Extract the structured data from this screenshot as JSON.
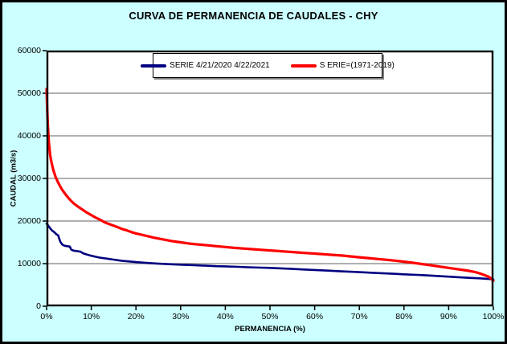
{
  "window": {
    "background_color": "#CCFFFF",
    "plot_background_color": "#FFFFFF",
    "border_color": "#000000",
    "gridline_color": "#808080"
  },
  "chart_data": {
    "type": "line",
    "title": "CURVA DE PERMANENCIA DE CAUDALES - CHY",
    "xlabel": "PERMANENCIA (%)",
    "ylabel": "CAUDAL (m3/s)",
    "xlim": [
      0,
      100
    ],
    "ylim": [
      0,
      60000
    ],
    "grid": true,
    "legend_position": "top-center",
    "x_ticks": [
      0,
      10,
      20,
      30,
      40,
      50,
      60,
      70,
      80,
      90,
      100
    ],
    "x_tick_labels": [
      "0%",
      "10%",
      "20%",
      "30%",
      "40%",
      "50%",
      "60%",
      "70%",
      "80%",
      "90%",
      "100%"
    ],
    "y_ticks": [
      0,
      10000,
      20000,
      30000,
      40000,
      50000,
      60000
    ],
    "y_tick_labels": [
      "0",
      "10000",
      "20000",
      "30000",
      "40000",
      "50000",
      "60000"
    ],
    "series": [
      {
        "name": "SERIE 4/21/2020 4/22/2021",
        "color": "#000080",
        "line_width": 2.6,
        "points": [
          [
            0,
            19400
          ],
          [
            0.3,
            19000
          ],
          [
            0.8,
            18300
          ],
          [
            1.2,
            17800
          ],
          [
            1.7,
            17400
          ],
          [
            2.2,
            16900
          ],
          [
            2.6,
            16600
          ],
          [
            2.8,
            15900
          ],
          [
            3.1,
            15100
          ],
          [
            3.5,
            14500
          ],
          [
            4,
            14200
          ],
          [
            4.6,
            14100
          ],
          [
            5.2,
            14000
          ],
          [
            5.5,
            13300
          ],
          [
            6,
            13050
          ],
          [
            6.8,
            12950
          ],
          [
            7.6,
            12800
          ],
          [
            8.2,
            12400
          ],
          [
            9,
            12150
          ],
          [
            10,
            11850
          ],
          [
            11,
            11600
          ],
          [
            12,
            11400
          ],
          [
            13,
            11250
          ],
          [
            14,
            11100
          ],
          [
            15,
            10950
          ],
          [
            16,
            10800
          ],
          [
            17,
            10650
          ],
          [
            18,
            10550
          ],
          [
            19,
            10450
          ],
          [
            20,
            10350
          ],
          [
            22,
            10200
          ],
          [
            24,
            10050
          ],
          [
            26,
            9950
          ],
          [
            28,
            9850
          ],
          [
            30,
            9750
          ],
          [
            33,
            9650
          ],
          [
            35,
            9550
          ],
          [
            38,
            9400
          ],
          [
            40,
            9350
          ],
          [
            43,
            9250
          ],
          [
            45,
            9150
          ],
          [
            48,
            9050
          ],
          [
            50,
            9000
          ],
          [
            53,
            8850
          ],
          [
            55,
            8750
          ],
          [
            58,
            8600
          ],
          [
            60,
            8500
          ],
          [
            63,
            8350
          ],
          [
            65,
            8250
          ],
          [
            68,
            8100
          ],
          [
            70,
            8000
          ],
          [
            73,
            7850
          ],
          [
            75,
            7750
          ],
          [
            78,
            7600
          ],
          [
            80,
            7500
          ],
          [
            83,
            7350
          ],
          [
            85,
            7250
          ],
          [
            88,
            7050
          ],
          [
            90,
            6950
          ],
          [
            93,
            6750
          ],
          [
            95,
            6650
          ],
          [
            97,
            6550
          ],
          [
            99,
            6400
          ],
          [
            100,
            6300
          ]
        ]
      },
      {
        "name": "S ERIE=(1971-2019)",
        "color": "#FF0000",
        "line_width": 3.2,
        "points": [
          [
            0,
            51000
          ],
          [
            0.15,
            46000
          ],
          [
            0.3,
            42000
          ],
          [
            0.5,
            38500
          ],
          [
            0.8,
            35500
          ],
          [
            1,
            34200
          ],
          [
            1.5,
            32000
          ],
          [
            2,
            30400
          ],
          [
            2.5,
            29200
          ],
          [
            3,
            28200
          ],
          [
            3.5,
            27300
          ],
          [
            4,
            26600
          ],
          [
            4.5,
            25900
          ],
          [
            5,
            25300
          ],
          [
            5.5,
            24700
          ],
          [
            6,
            24200
          ],
          [
            6.5,
            23800
          ],
          [
            7,
            23400
          ],
          [
            8,
            22700
          ],
          [
            9,
            22000
          ],
          [
            10,
            21400
          ],
          [
            11,
            20800
          ],
          [
            12,
            20300
          ],
          [
            13,
            19700
          ],
          [
            14,
            19300
          ],
          [
            15,
            18900
          ],
          [
            16,
            18500
          ],
          [
            17,
            18100
          ],
          [
            18,
            17800
          ],
          [
            19,
            17400
          ],
          [
            20,
            17100
          ],
          [
            22,
            16600
          ],
          [
            24,
            16100
          ],
          [
            26,
            15700
          ],
          [
            28,
            15300
          ],
          [
            30,
            15000
          ],
          [
            32,
            14700
          ],
          [
            34,
            14500
          ],
          [
            36,
            14300
          ],
          [
            38,
            14100
          ],
          [
            40,
            13900
          ],
          [
            42,
            13700
          ],
          [
            44,
            13550
          ],
          [
            46,
            13400
          ],
          [
            48,
            13250
          ],
          [
            50,
            13100
          ],
          [
            52,
            12950
          ],
          [
            54,
            12800
          ],
          [
            56,
            12650
          ],
          [
            58,
            12500
          ],
          [
            60,
            12350
          ],
          [
            62,
            12200
          ],
          [
            64,
            12050
          ],
          [
            66,
            11900
          ],
          [
            68,
            11700
          ],
          [
            70,
            11500
          ],
          [
            72,
            11300
          ],
          [
            74,
            11100
          ],
          [
            76,
            10900
          ],
          [
            78,
            10700
          ],
          [
            80,
            10450
          ],
          [
            82,
            10200
          ],
          [
            84,
            9900
          ],
          [
            86,
            9600
          ],
          [
            88,
            9300
          ],
          [
            90,
            9000
          ],
          [
            92,
            8700
          ],
          [
            94,
            8400
          ],
          [
            95,
            8200
          ],
          [
            96,
            8000
          ],
          [
            97,
            7700
          ],
          [
            98,
            7300
          ],
          [
            99,
            6900
          ],
          [
            99.5,
            6500
          ],
          [
            100,
            6000
          ]
        ]
      }
    ]
  }
}
